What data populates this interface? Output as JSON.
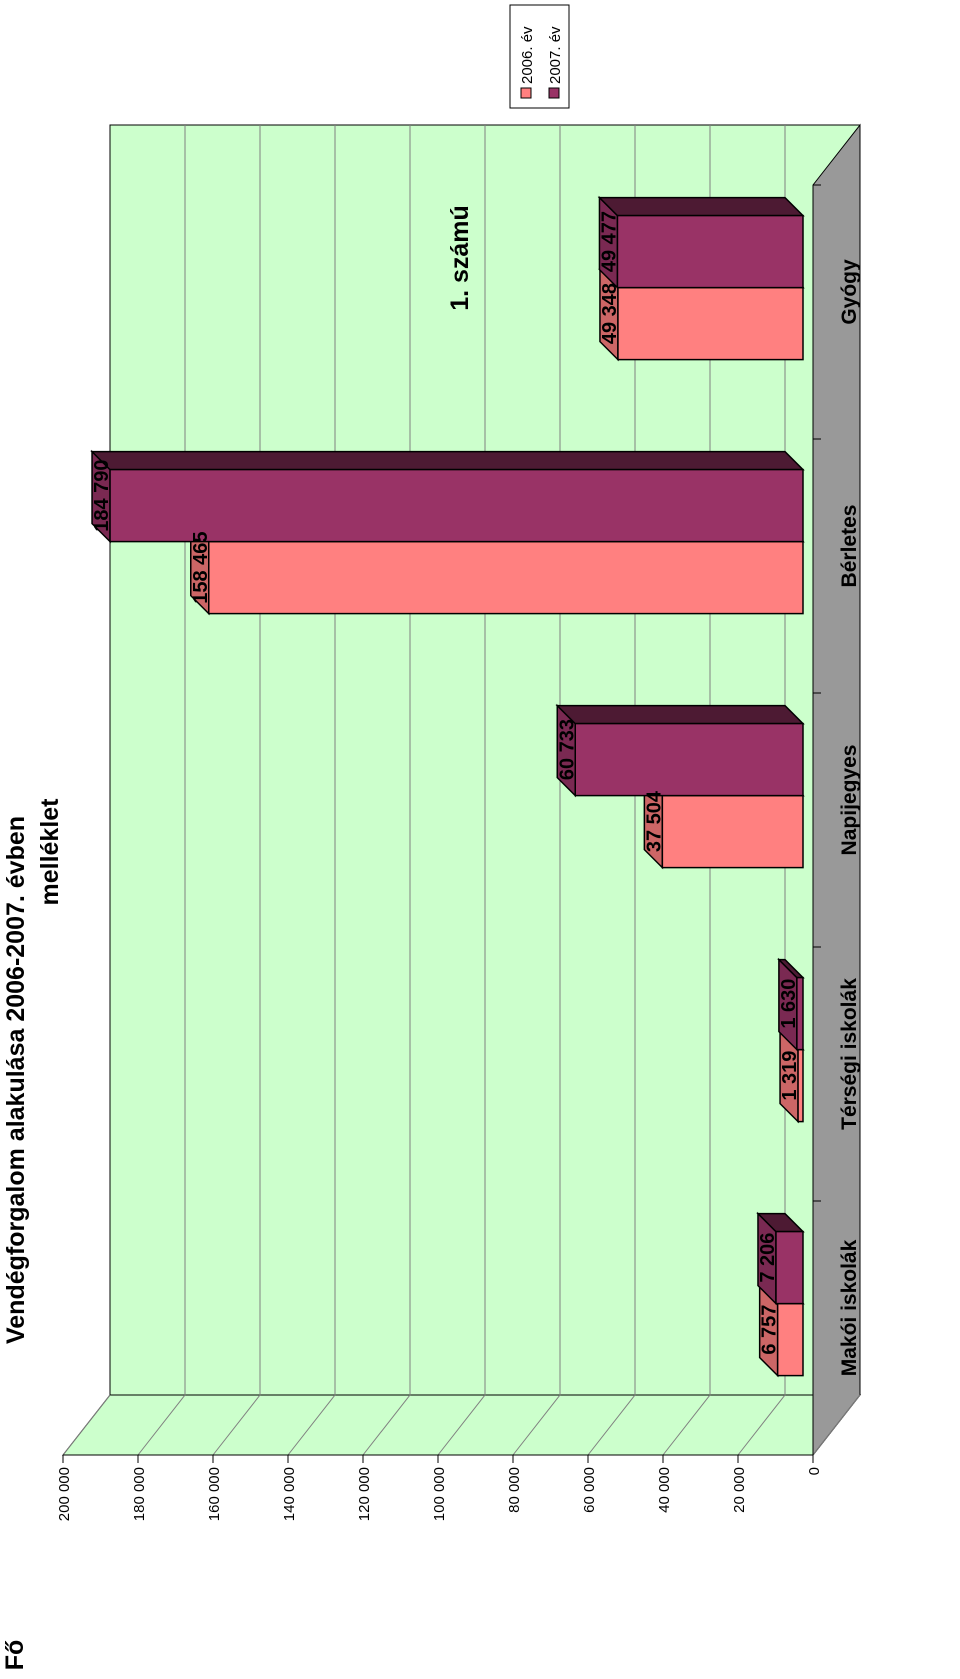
{
  "header": {
    "title": "Vendégforgalom alakulása 2006-2007. évben",
    "annex_line1": "1. számú",
    "annex_line2": "melléklet"
  },
  "chart_data": {
    "type": "bar",
    "orientation": "rotated 90° clockwise (3D clustered columns)",
    "title": "Vendégforgalom alakulása 2006-2007. évben",
    "ylabel": "Fő",
    "xlabel": "",
    "categories": [
      "Makói iskolák",
      "Térségi iskolák",
      "Napijegyes",
      "Bérletes",
      "Gyógy"
    ],
    "series": [
      {
        "name": "2006. év",
        "values": [
          6757,
          1319,
          37504,
          158465,
          49348
        ],
        "labels": [
          "6 757",
          "1 319",
          "37 504",
          "158 465",
          "49 348"
        ]
      },
      {
        "name": "2007. év",
        "values": [
          7206,
          1630,
          60733,
          184790,
          49477
        ],
        "labels": [
          "7 206",
          "1 630",
          "60 733",
          "184 790",
          "49 477"
        ]
      }
    ],
    "ylim": [
      0,
      200000
    ],
    "yticks": [
      "0",
      "20 000",
      "40 000",
      "60 000",
      "80 000",
      "100 000",
      "120 000",
      "140 000",
      "160 000",
      "180 000",
      "200 000"
    ],
    "grid": true,
    "legend_position": "top-right",
    "colors": {
      "series_2006": "#ff8080",
      "series_2007": "#993366",
      "plot_background": "#ccffcc",
      "floor": "#999999",
      "gridline": "#808080"
    }
  }
}
